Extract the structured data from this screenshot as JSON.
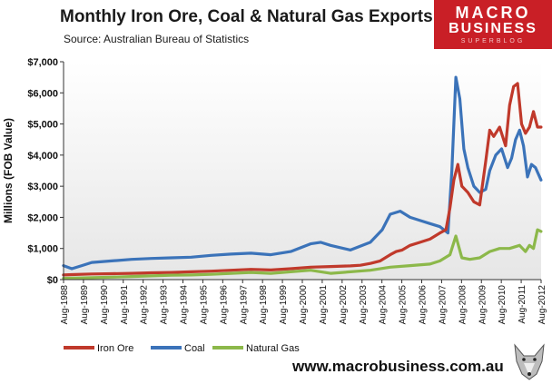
{
  "header": {
    "title": "Monthly Iron Ore, Coal & Natural Gas Exports",
    "source": "Source:  Australian Bureau of Statistics"
  },
  "logo": {
    "line1": "MACRO",
    "line2": "BUSINESS",
    "line3": "SUPERBLOG"
  },
  "footer": {
    "url": "www.macrobusiness.com.au"
  },
  "chart_data": {
    "type": "line",
    "title": "Monthly Iron Ore, Coal & Natural Gas Exports",
    "xlabel": "",
    "ylabel": "Millions (FOB Value)",
    "ylim": [
      0,
      7000
    ],
    "yticks": [
      0,
      1000,
      2000,
      3000,
      4000,
      5000,
      6000,
      7000
    ],
    "ytick_labels": [
      "$0",
      "$1,000",
      "$2,000",
      "$3,000",
      "$4,000",
      "$5,000",
      "$6,000",
      "$7,000"
    ],
    "xlim": [
      1988.583,
      2012.583
    ],
    "xtick_labels": [
      "Aug-1988",
      "Aug-1989",
      "Aug-1990",
      "Aug-1991",
      "Aug-1992",
      "Aug-1993",
      "Aug-1994",
      "Aug-1995",
      "Aug-1996",
      "Aug-1997",
      "Aug-1998",
      "Aug-1999",
      "Aug-2000",
      "Aug-2001",
      "Aug-2002",
      "Aug-2003",
      "Aug-2004",
      "Aug-2005",
      "Aug-2006",
      "Aug-2007",
      "Aug-2008",
      "Aug-2009",
      "Aug-2010",
      "Aug-2011",
      "Aug-2012"
    ],
    "grid": false,
    "legend": "bottom-left",
    "series": [
      {
        "name": "Iron Ore",
        "color": "#c0392b",
        "x": [
          1988.58,
          1989.0,
          1990.0,
          1991.0,
          1992.0,
          1993.0,
          1994.0,
          1995.0,
          1996.0,
          1997.0,
          1998.0,
          1999.0,
          2000.0,
          2001.0,
          2002.0,
          2003.0,
          2003.5,
          2004.0,
          2004.5,
          2005.0,
          2005.3,
          2005.6,
          2006.0,
          2006.5,
          2007.0,
          2007.5,
          2007.8,
          2008.0,
          2008.2,
          2008.4,
          2008.6,
          2008.9,
          2009.2,
          2009.5,
          2009.8,
          2010.0,
          2010.2,
          2010.5,
          2010.8,
          2011.0,
          2011.2,
          2011.4,
          2011.6,
          2011.8,
          2012.0,
          2012.2,
          2012.4,
          2012.58
        ],
        "values": [
          150,
          160,
          180,
          190,
          200,
          220,
          230,
          250,
          270,
          300,
          330,
          310,
          350,
          400,
          420,
          440,
          460,
          520,
          600,
          800,
          900,
          950,
          1100,
          1200,
          1300,
          1500,
          1600,
          2300,
          3200,
          3700,
          3000,
          2800,
          2500,
          2400,
          3800,
          4800,
          4600,
          4900,
          4300,
          5600,
          6200,
          6300,
          5000,
          4700,
          4900,
          5400,
          4900,
          4900
        ]
      },
      {
        "name": "Coal",
        "color": "#3b73b9",
        "x": [
          1988.58,
          1989.0,
          1989.5,
          1990.0,
          1991.0,
          1992.0,
          1993.0,
          1994.0,
          1995.0,
          1996.0,
          1997.0,
          1998.0,
          1999.0,
          2000.0,
          2001.0,
          2001.5,
          2002.0,
          2003.0,
          2004.0,
          2004.6,
          2005.0,
          2005.5,
          2006.0,
          2006.5,
          2007.0,
          2007.5,
          2007.9,
          2008.1,
          2008.3,
          2008.5,
          2008.7,
          2008.9,
          2009.2,
          2009.5,
          2009.8,
          2010.0,
          2010.3,
          2010.6,
          2010.9,
          2011.1,
          2011.3,
          2011.5,
          2011.7,
          2011.9,
          2012.1,
          2012.3,
          2012.58
        ],
        "values": [
          450,
          350,
          450,
          550,
          600,
          650,
          680,
          700,
          720,
          780,
          820,
          850,
          800,
          900,
          1150,
          1200,
          1100,
          950,
          1200,
          1600,
          2100,
          2200,
          2000,
          1900,
          1800,
          1700,
          1500,
          3500,
          6500,
          5800,
          4200,
          3600,
          3000,
          2800,
          2900,
          3500,
          4000,
          4200,
          3600,
          3900,
          4500,
          4800,
          4300,
          3300,
          3700,
          3600,
          3200
        ]
      },
      {
        "name": "Natural Gas",
        "color": "#8cb84a",
        "x": [
          1988.58,
          1990.0,
          1991.0,
          1992.0,
          1993.0,
          1994.0,
          1995.0,
          1996.0,
          1997.0,
          1998.0,
          1999.0,
          2000.0,
          2001.0,
          2002.0,
          2003.0,
          2004.0,
          2005.0,
          2006.0,
          2007.0,
          2007.5,
          2008.0,
          2008.3,
          2008.6,
          2009.0,
          2009.5,
          2010.0,
          2010.5,
          2011.0,
          2011.5,
          2011.8,
          2012.0,
          2012.2,
          2012.4,
          2012.58
        ],
        "values": [
          40,
          60,
          80,
          100,
          120,
          140,
          150,
          170,
          200,
          230,
          200,
          250,
          300,
          200,
          250,
          300,
          400,
          450,
          500,
          600,
          800,
          1400,
          700,
          650,
          700,
          900,
          1000,
          1000,
          1100,
          900,
          1100,
          1000,
          1600,
          1550
        ]
      }
    ]
  }
}
